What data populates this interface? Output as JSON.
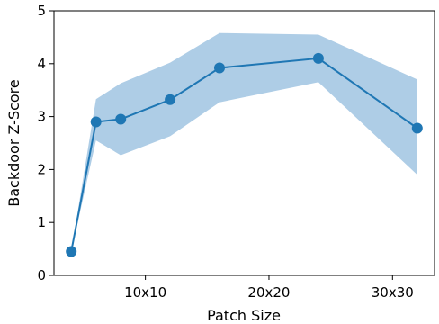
{
  "chart_data": {
    "type": "line",
    "title": "",
    "xlabel": "Patch Size",
    "ylabel": "Backdoor Z-Score",
    "xlim": [
      2.6,
      33.4
    ],
    "ylim": [
      0,
      5
    ],
    "grid": false,
    "legend": "none",
    "x_ticks": [
      {
        "value": 10,
        "label": "10x10"
      },
      {
        "value": 20,
        "label": "20x20"
      },
      {
        "value": 30,
        "label": "30x30"
      }
    ],
    "y_ticks": [
      {
        "value": 0,
        "label": "0"
      },
      {
        "value": 1,
        "label": "1"
      },
      {
        "value": 2,
        "label": "2"
      },
      {
        "value": 3,
        "label": "3"
      },
      {
        "value": 4,
        "label": "4"
      },
      {
        "value": 5,
        "label": "5"
      }
    ],
    "series": [
      {
        "x": [
          4,
          6,
          8,
          12,
          16,
          24,
          32
        ],
        "values": [
          0.45,
          2.9,
          2.95,
          3.32,
          3.92,
          4.1,
          2.78
        ],
        "lower": [
          0.45,
          2.55,
          2.27,
          2.63,
          3.27,
          3.65,
          1.9
        ],
        "upper": [
          0.45,
          3.33,
          3.63,
          4.02,
          4.58,
          4.55,
          3.7
        ],
        "color": "#1f77b4",
        "band_color": "#aecde6"
      }
    ]
  }
}
